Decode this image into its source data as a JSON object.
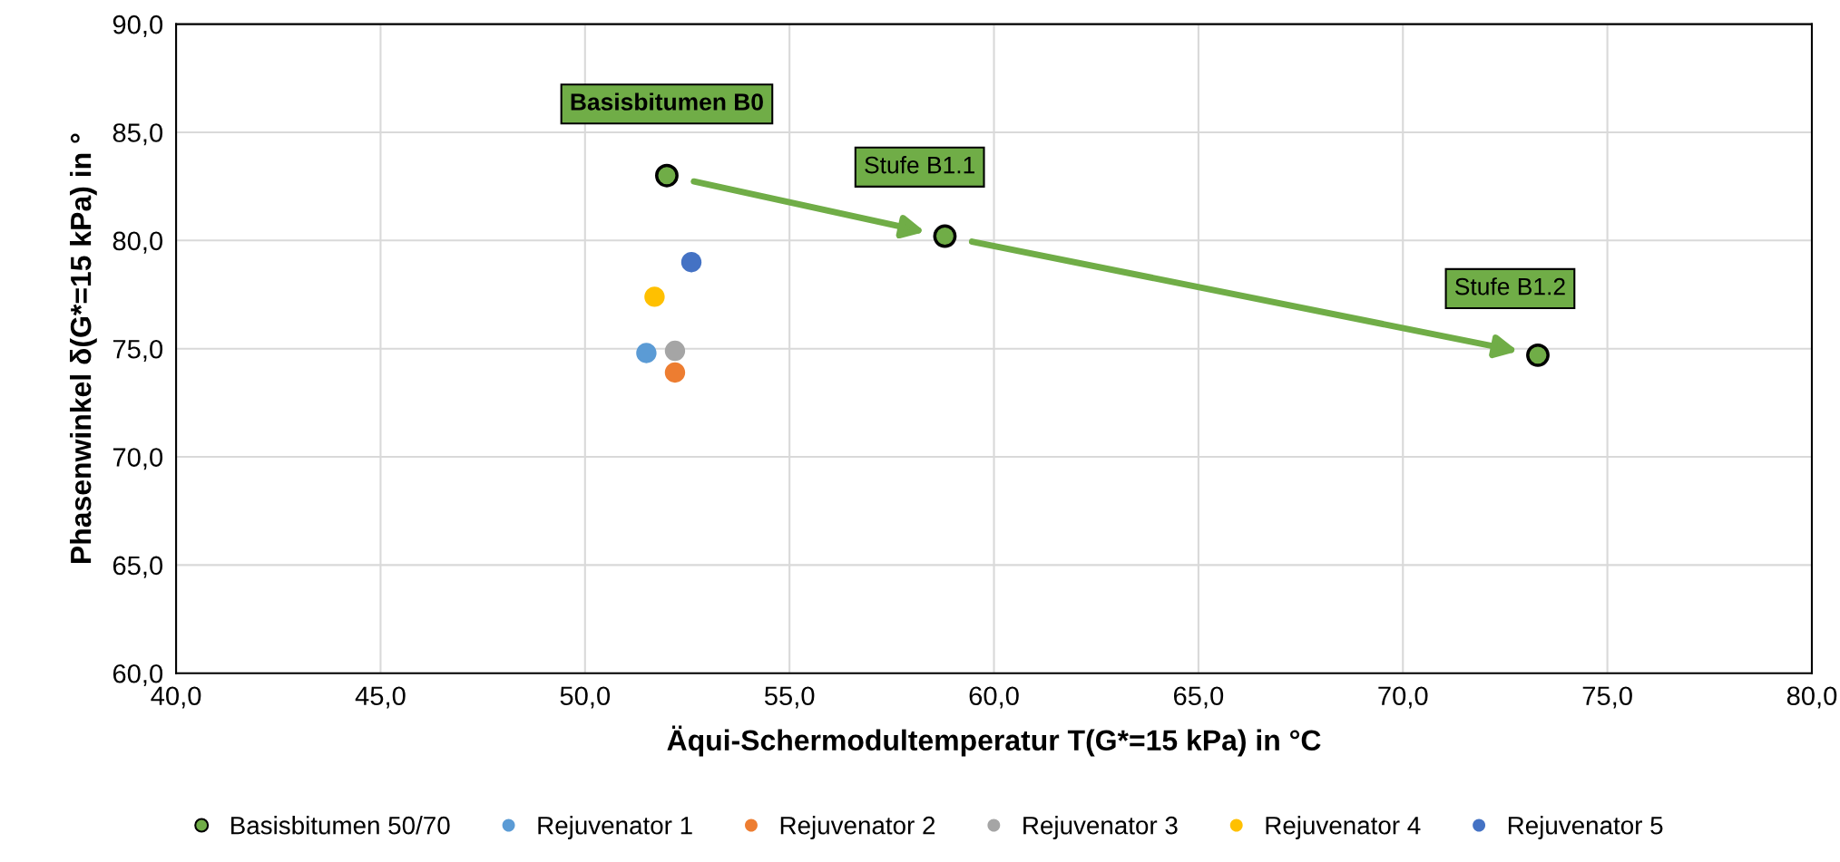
{
  "chart_data": {
    "type": "scatter",
    "xlabel": "Äqui-Schermodultemperatur T(G*=15 kPa) in °C",
    "ylabel": "Phasenwinkel δ(G*=15 kPa) in °",
    "xlim": [
      40,
      80
    ],
    "ylim": [
      60,
      90
    ],
    "xticks": [
      {
        "value": 40,
        "label": "40,0"
      },
      {
        "value": 45,
        "label": "45,0"
      },
      {
        "value": 50,
        "label": "50,0"
      },
      {
        "value": 55,
        "label": "55,0"
      },
      {
        "value": 60,
        "label": "60,0"
      },
      {
        "value": 65,
        "label": "65,0"
      },
      {
        "value": 70,
        "label": "70,0"
      },
      {
        "value": 75,
        "label": "75,0"
      },
      {
        "value": 80,
        "label": "80,0"
      }
    ],
    "yticks": [
      {
        "value": 60,
        "label": "60,0"
      },
      {
        "value": 65,
        "label": "65,0"
      },
      {
        "value": 70,
        "label": "70,0"
      },
      {
        "value": 75,
        "label": "75,0"
      },
      {
        "value": 80,
        "label": "80,0"
      },
      {
        "value": 85,
        "label": "85,0"
      },
      {
        "value": 90,
        "label": "90,0"
      }
    ],
    "grid": true,
    "legend": "bottom",
    "marker": "circle",
    "series": [
      {
        "name": "Basisbitumen 50/70",
        "color": "#70ad47",
        "x": [
          52.0,
          58.8,
          73.3
        ],
        "values": [
          83.0,
          80.2,
          74.7
        ]
      },
      {
        "name": "Rejuvenator 1",
        "color": "#5b9bd5",
        "x": [
          51.5
        ],
        "values": [
          74.8
        ]
      },
      {
        "name": "Rejuvenator 2",
        "color": "#ed7d31",
        "x": [
          52.2
        ],
        "values": [
          73.9
        ]
      },
      {
        "name": "Rejuvenator 3",
        "color": "#a5a5a5",
        "x": [
          52.2
        ],
        "values": [
          74.9
        ]
      },
      {
        "name": "Rejuvenator 4",
        "color": "#ffc000",
        "x": [
          51.7
        ],
        "values": [
          77.4
        ]
      },
      {
        "name": "Rejuvenator 5",
        "color": "#4472c4",
        "x": [
          52.6
        ],
        "values": [
          79.0
        ]
      }
    ],
    "annotations": [
      {
        "text": "Basisbitumen B0",
        "x": 52.0,
        "y": 83.0
      },
      {
        "text": "Stufe B1.1",
        "x": 58.8,
        "y": 80.2
      },
      {
        "text": "Stufe B1.2",
        "x": 73.3,
        "y": 74.7
      }
    ]
  }
}
